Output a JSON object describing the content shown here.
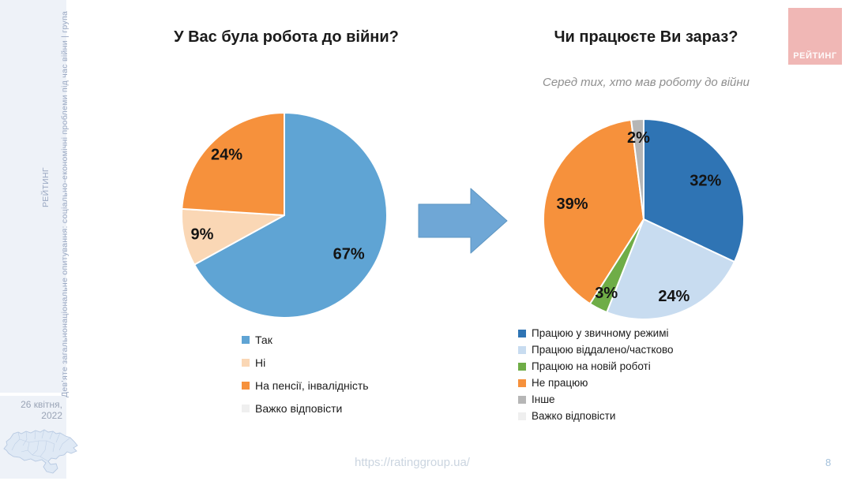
{
  "slide": {
    "footer_url": "https://ratinggroup.ua/",
    "page_number": "8",
    "logo_text": "РЕЙТИНГ"
  },
  "sidebar": {
    "vertical_title": "Дев’яте загальнонаціональне опитування: соціально-економічні проблеми під час війни | група",
    "vertical_brand": "РЕЙТИНГ",
    "date": "26 квітня, 2022"
  },
  "icons": {
    "arrow": "right-arrow-icon",
    "map": "ukraine-map"
  },
  "chart_data": [
    {
      "type": "pie",
      "title": "У Вас була робота до війни?",
      "subtitle": "",
      "unit": "%",
      "legend_position": "bottom",
      "slices": [
        {
          "label": "Так",
          "value": 67,
          "color": "#5FA4D4"
        },
        {
          "label": "Ні",
          "value": 9,
          "color": "#FAD7B5"
        },
        {
          "label": "На пенсії, інвалідність",
          "value": 24,
          "color": "#F6913C"
        },
        {
          "label": "Важко відповісти",
          "value": 0,
          "color": "#EFEFEF"
        }
      ]
    },
    {
      "type": "pie",
      "title": "Чи працюєте Ви зараз?",
      "subtitle": "Серед тих, хто мав роботу до війни",
      "unit": "%",
      "legend_position": "bottom",
      "slices": [
        {
          "label": "Працюю у звичному режимі",
          "value": 32,
          "color": "#2F74B4"
        },
        {
          "label": "Працюю віддалено/частково",
          "value": 24,
          "color": "#C8DCF0"
        },
        {
          "label": "Працюю на новій роботі",
          "value": 3,
          "color": "#6FAD47"
        },
        {
          "label": "Не працюю",
          "value": 39,
          "color": "#F6913C"
        },
        {
          "label": "Інше",
          "value": 2,
          "color": "#B6B6B6"
        },
        {
          "label": "Важко відповісти",
          "value": 0,
          "color": "#EFEFEF"
        }
      ]
    }
  ]
}
